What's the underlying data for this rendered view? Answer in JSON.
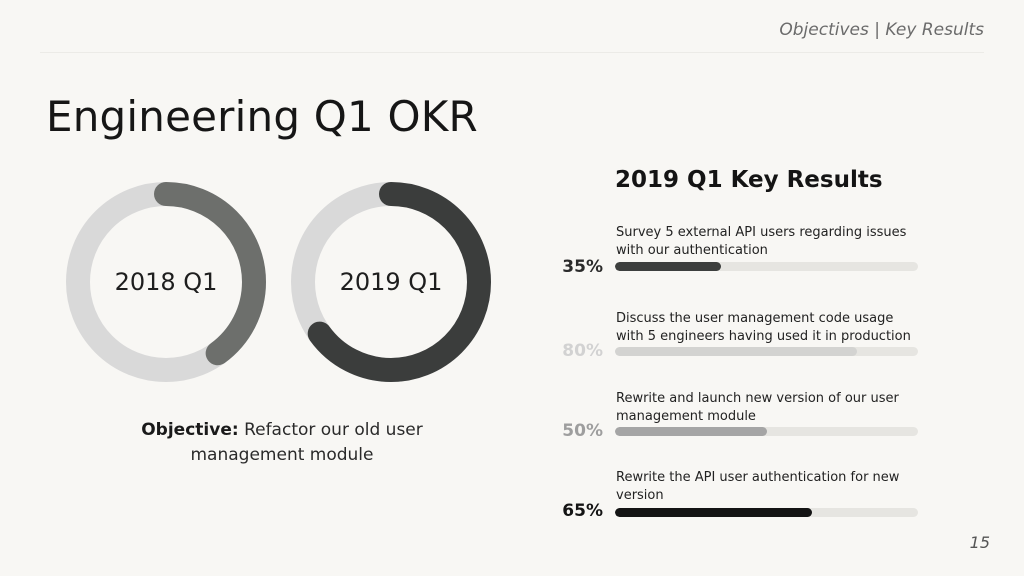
{
  "header": {
    "tag": "Objectives | Key Results"
  },
  "title": "Engineering Q1 OKR",
  "donuts": [
    {
      "label": "2018 Q1",
      "progress": 0.4,
      "color": "#6d6f6c",
      "track": "#d9d9d9"
    },
    {
      "label": "2019 Q1",
      "progress": 0.65,
      "color": "#3b3d3c",
      "track": "#d9d9d9"
    }
  ],
  "objective": {
    "prefix": "Objective:",
    "text": "Refactor our old user management module"
  },
  "key_results": {
    "title": "2019 Q1 Key Results",
    "items": [
      {
        "text": "Survey 5 external API users regarding issues with our authentication",
        "percent_label": "35%",
        "value": 35,
        "bar_color": "#3d3f3e",
        "label_color": "#2b2b2b"
      },
      {
        "text": "Discuss the user management code usage with 5 engineers having used it in production",
        "percent_label": "80%",
        "value": 80,
        "bar_color": "#d3d3d1",
        "label_color": "#d2d2d2"
      },
      {
        "text": "Rewrite and launch new version of our user management module",
        "percent_label": "50%",
        "value": 50,
        "bar_color": "#a5a5a5",
        "label_color": "#9e9e9e"
      },
      {
        "text": "Rewrite the API user authentication for new version",
        "percent_label": "65%",
        "value": 65,
        "bar_color": "#141414",
        "label_color": "#141414"
      }
    ]
  },
  "page_number": "15"
}
